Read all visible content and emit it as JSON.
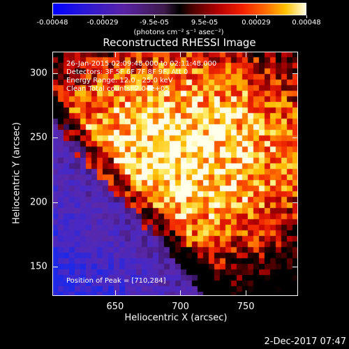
{
  "colorbar": {
    "tick_labels": [
      "-0.00048",
      "-0.00029",
      "-9.5e-05",
      "9.5e-05",
      "0.00029",
      "0.00048"
    ],
    "unit_label": "(photons cm⁻² s⁻¹ asec⁻²)"
  },
  "chart_data": {
    "type": "heatmap",
    "title": "Reconstructed RHESSI Image",
    "xlabel": "Heliocentric X (arcsec)",
    "ylabel": "Heliocentric Y (arcsec)",
    "xlim": [
      602,
      790
    ],
    "ylim": [
      127,
      317
    ],
    "x_ticks": [
      650,
      700,
      750
    ],
    "y_ticks": [
      150,
      200,
      250,
      300
    ],
    "colorscale_range": [
      -0.00048,
      0.00048
    ],
    "annotations": {
      "time": "26-Jan-2015 02:09:48.000 to 02:11:48.000",
      "detectors": "Detectors: 3F 5F 6F 7F 8F 9F, Att 0",
      "energy": "Energy Range: 12.0 - 25.0 keV",
      "method": "Clean    Total counts: 2.04e+05",
      "peak": "Position of Peak = [710,284]"
    },
    "peak": [
      710,
      284
    ]
  },
  "footer": {
    "date": "2-Dec-2017 07:47"
  }
}
